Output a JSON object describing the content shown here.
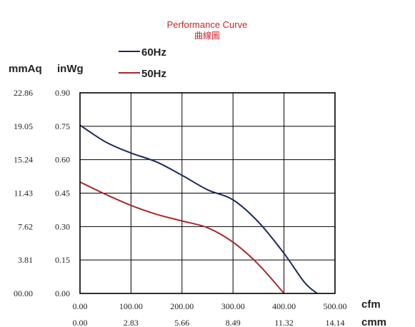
{
  "chart_data": {
    "type": "line",
    "title": "Performance Curve",
    "subtitle": "曲線圖",
    "y_units": [
      "mmAq",
      "inWg"
    ],
    "x_units": [
      "cfm",
      "cmm"
    ],
    "y_ticks_mmaq": [
      "00.00",
      "3.81",
      "7.62",
      "11.43",
      "15.24",
      "19.05",
      "22.86"
    ],
    "y_ticks_inwg": [
      "0.00",
      "0.15",
      "0.30",
      "0.45",
      "0.60",
      "0.75",
      "0.90"
    ],
    "x_ticks_cfm": [
      "0.00",
      "100.00",
      "200.00",
      "300.00",
      "400.00",
      "500.00"
    ],
    "x_ticks_cmm": [
      "0.00",
      "2.83",
      "5.66",
      "8.49",
      "11.32",
      "14.14"
    ],
    "xlim": [
      0,
      500
    ],
    "ylim": [
      0,
      0.9
    ],
    "grid": true,
    "legend_position": "top-left",
    "series": [
      {
        "name": "60Hz",
        "color": "#1c2a5c",
        "points": [
          [
            0,
            0.755
          ],
          [
            50,
            0.68
          ],
          [
            100,
            0.63
          ],
          [
            150,
            0.59
          ],
          [
            200,
            0.53
          ],
          [
            250,
            0.465
          ],
          [
            300,
            0.42
          ],
          [
            350,
            0.32
          ],
          [
            400,
            0.18
          ],
          [
            440,
            0.05
          ],
          [
            465,
            0.0
          ]
        ]
      },
      {
        "name": "50Hz",
        "color": "#a6292e",
        "points": [
          [
            0,
            0.5
          ],
          [
            50,
            0.445
          ],
          [
            100,
            0.395
          ],
          [
            150,
            0.355
          ],
          [
            200,
            0.325
          ],
          [
            250,
            0.295
          ],
          [
            300,
            0.23
          ],
          [
            350,
            0.13
          ],
          [
            400,
            0.0
          ]
        ]
      }
    ]
  }
}
